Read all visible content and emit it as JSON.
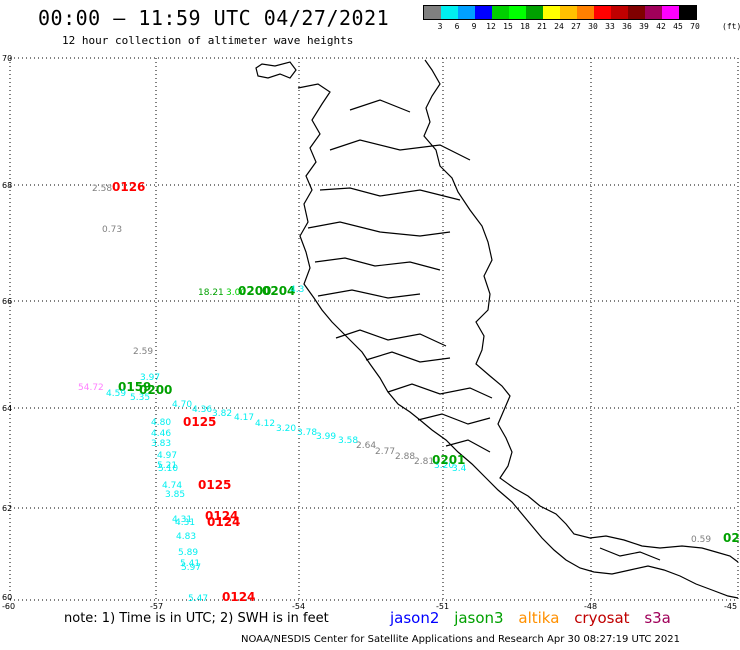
{
  "header": {
    "title": "00:00 – 11:59 UTC 04/27/2021",
    "subtitle": "12 hour collection of altimeter wave heights"
  },
  "legend": {
    "colors": [
      "#808080",
      "#00f0f0",
      "#00a0ff",
      "#0000ff",
      "#00d000",
      "#00ff00",
      "#00a000",
      "#ffff00",
      "#ffc000",
      "#ff8000",
      "#ff0000",
      "#c00000",
      "#800000",
      "#a0005a",
      "#ff00ff",
      "#000000"
    ],
    "labels": [
      "3",
      "6",
      "9",
      "12",
      "15",
      "18",
      "21",
      "24",
      "27",
      "30",
      "33",
      "36",
      "39",
      "42",
      "45",
      "70"
    ],
    "unit": "(ft)"
  },
  "axes": {
    "lat_labels": [
      "70",
      "68",
      "66",
      "64",
      "62",
      "60"
    ],
    "lon_labels": [
      "-60",
      "-57",
      "-54",
      "-51",
      "-48",
      "-45"
    ]
  },
  "observations": [
    {
      "text": "2.58",
      "color": "#808080"
    },
    {
      "text": "0126",
      "color": "#ff0000",
      "kind": "pass"
    },
    {
      "text": "0.73",
      "color": "#808080"
    },
    {
      "text": "18.21",
      "color": "#00a000"
    },
    {
      "text": "3.00",
      "color": "#00d000"
    },
    {
      "text": "0200",
      "color": "#00a000",
      "kind": "pass"
    },
    {
      "text": "0204",
      "color": "#00a000",
      "kind": "pass"
    },
    {
      "text": "4.3",
      "color": "#00f0f0"
    },
    {
      "text": "2.59",
      "color": "#808080"
    },
    {
      "text": "3.97",
      "color": "#00f0f0"
    },
    {
      "text": "54.72",
      "color": "#ff80ff"
    },
    {
      "text": "0159",
      "color": "#00a000",
      "kind": "pass"
    },
    {
      "text": "0200",
      "color": "#00a000",
      "kind": "pass"
    },
    {
      "text": "4.59",
      "color": "#00f0f0"
    },
    {
      "text": "5.35",
      "color": "#00f0f0"
    },
    {
      "text": "4.70",
      "color": "#00f0f0"
    },
    {
      "text": "4.36",
      "color": "#00f0f0"
    },
    {
      "text": "3.82",
      "color": "#00f0f0"
    },
    {
      "text": "4.17",
      "color": "#00f0f0"
    },
    {
      "text": "4.12",
      "color": "#00f0f0"
    },
    {
      "text": "3.20",
      "color": "#00f0f0"
    },
    {
      "text": "3.78",
      "color": "#00f0f0"
    },
    {
      "text": "3.99",
      "color": "#00f0f0"
    },
    {
      "text": "3.58",
      "color": "#00f0f0"
    },
    {
      "text": "2.64",
      "color": "#808080"
    },
    {
      "text": "2.77",
      "color": "#808080"
    },
    {
      "text": "2.88",
      "color": "#808080"
    },
    {
      "text": "2.81",
      "color": "#808080"
    },
    {
      "text": "3.20",
      "color": "#00f0f0"
    },
    {
      "text": "3.4",
      "color": "#00f0f0"
    },
    {
      "text": "0201",
      "color": "#00a000",
      "kind": "pass"
    },
    {
      "text": "4.80",
      "color": "#00f0f0"
    },
    {
      "text": "0125",
      "color": "#ff0000",
      "kind": "pass"
    },
    {
      "text": "4.46",
      "color": "#00f0f0"
    },
    {
      "text": "3.83",
      "color": "#00f0f0"
    },
    {
      "text": "4.97",
      "color": "#00f0f0"
    },
    {
      "text": "5.21",
      "color": "#00f0f0"
    },
    {
      "text": "5.10",
      "color": "#00f0f0"
    },
    {
      "text": "4.74",
      "color": "#00f0f0"
    },
    {
      "text": "0125",
      "color": "#ff0000",
      "kind": "pass"
    },
    {
      "text": "3.85",
      "color": "#00f0f0"
    },
    {
      "text": "4.31",
      "color": "#00f0f0"
    },
    {
      "text": "4.31",
      "color": "#00f0f0"
    },
    {
      "text": "0124",
      "color": "#ff0000",
      "kind": "pass"
    },
    {
      "text": "0124",
      "color": "#ff0000",
      "kind": "pass"
    },
    {
      "text": "4.83",
      "color": "#00f0f0"
    },
    {
      "text": "5.89",
      "color": "#00f0f0"
    },
    {
      "text": "5.41",
      "color": "#00f0f0"
    },
    {
      "text": "5.97",
      "color": "#00f0f0"
    },
    {
      "text": "5.47",
      "color": "#00f0f0"
    },
    {
      "text": "0124",
      "color": "#ff0000",
      "kind": "pass"
    },
    {
      "text": "0.59",
      "color": "#808080"
    },
    {
      "text": "02",
      "color": "#00a000",
      "kind": "pass"
    }
  ],
  "footer": {
    "note": "note:  1) Time is in UTC;  2) SWH is in feet",
    "satellites": [
      {
        "name": "jason2",
        "color": "#0000ff"
      },
      {
        "name": "jason3",
        "color": "#00a000"
      },
      {
        "name": "altika",
        "color": "#ff9000"
      },
      {
        "name": "cryosat",
        "color": "#c00000"
      },
      {
        "name": "s3a",
        "color": "#a0005a"
      }
    ],
    "credit": "NOAA/NESDIS Center for Satellite Applications and Research    Apr 30 08:27:19 UTC 2021"
  }
}
